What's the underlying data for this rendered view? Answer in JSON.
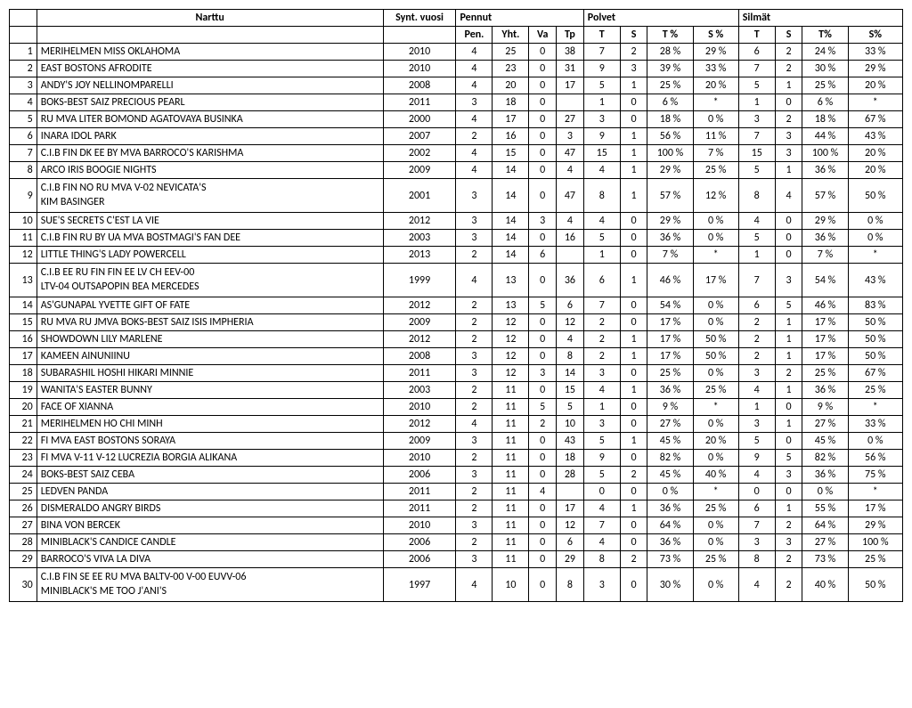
{
  "headers": {
    "row1": {
      "narttu": "Narttu",
      "synt": "Synt. vuosi",
      "pennut": "Pennut",
      "polvet": "Polvet",
      "silmat": "Silmät"
    },
    "row2": {
      "pen": "Pen.",
      "yht": "Yht.",
      "va": "Va",
      "tp": "Tp",
      "t1": "T",
      "s1": "S",
      "tp1": "T %",
      "sp1": "S %",
      "t2": "T",
      "s2": "S",
      "tp2": "T%",
      "sp2": "S%"
    }
  },
  "col_widths": {
    "num": 30,
    "name": 380,
    "synt": 80,
    "pen": 40,
    "yht": 40,
    "va": 30,
    "tp": 30,
    "t1": 40,
    "s1": 30,
    "tp1": 50,
    "sp1": 50,
    "t2": 40,
    "s2": 30,
    "tp2": 50,
    "sp2": 60
  },
  "rows": [
    {
      "n": "1",
      "name": "MERIHELMEN MISS OKLAHOMA",
      "synt": "2010",
      "pen": "4",
      "yht": "25",
      "va": "0",
      "tp": "38",
      "t1": "7",
      "s1": "2",
      "tp1": "28 %",
      "sp1": "29 %",
      "t2": "6",
      "s2": "2",
      "tp2": "24 %",
      "sp2": "33 %"
    },
    {
      "n": "2",
      "name": "EAST BOSTONS AFRODITE",
      "synt": "2010",
      "pen": "4",
      "yht": "23",
      "va": "0",
      "tp": "31",
      "t1": "9",
      "s1": "3",
      "tp1": "39 %",
      "sp1": "33 %",
      "t2": "7",
      "s2": "2",
      "tp2": "30 %",
      "sp2": "29 %"
    },
    {
      "n": "3",
      "name": "ANDY'S JOY NELLINOMPARELLI",
      "synt": "2008",
      "pen": "4",
      "yht": "20",
      "va": "0",
      "tp": "17",
      "t1": "5",
      "s1": "1",
      "tp1": "25 %",
      "sp1": "20 %",
      "t2": "5",
      "s2": "1",
      "tp2": "25 %",
      "sp2": "20 %"
    },
    {
      "n": "4",
      "name": "BOKS-BEST SAIZ PRECIOUS PEARL",
      "synt": "2011",
      "pen": "3",
      "yht": "18",
      "va": "0",
      "tp": "",
      "t1": "1",
      "s1": "0",
      "tp1": "6 %",
      "sp1": "*",
      "t2": "1",
      "s2": "0",
      "tp2": "6 %",
      "sp2": "*"
    },
    {
      "n": "5",
      "name": "RU MVA LITER BOMOND AGATOVAYA BUSINKA",
      "synt": "2000",
      "pen": "4",
      "yht": "17",
      "va": "0",
      "tp": "27",
      "t1": "3",
      "s1": "0",
      "tp1": "18 %",
      "sp1": "0 %",
      "t2": "3",
      "s2": "2",
      "tp2": "18 %",
      "sp2": "67 %"
    },
    {
      "n": "6",
      "name": "INARA IDOL PARK",
      "synt": "2007",
      "pen": "2",
      "yht": "16",
      "va": "0",
      "tp": "3",
      "t1": "9",
      "s1": "1",
      "tp1": "56 %",
      "sp1": "11 %",
      "t2": "7",
      "s2": "3",
      "tp2": "44 %",
      "sp2": "43 %"
    },
    {
      "n": "7",
      "name": "C.I.B FIN DK EE BY MVA BARROCO'S KARISHMA",
      "synt": "2002",
      "pen": "4",
      "yht": "15",
      "va": "0",
      "tp": "47",
      "t1": "15",
      "s1": "1",
      "tp1": "100 %",
      "sp1": "7 %",
      "t2": "15",
      "s2": "3",
      "tp2": "100 %",
      "sp2": "20 %"
    },
    {
      "n": "8",
      "name": "ARCO IRIS BOOGIE NIGHTS",
      "synt": "2009",
      "pen": "4",
      "yht": "14",
      "va": "0",
      "tp": "4",
      "t1": "4",
      "s1": "1",
      "tp1": "29 %",
      "sp1": "25 %",
      "t2": "5",
      "s2": "1",
      "tp2": "36 %",
      "sp2": "20 %"
    },
    {
      "n": "9",
      "name": "C.I.B FIN NO RU MVA V-02 NEVICATA'S\nKIM BASINGER",
      "synt": "2001",
      "pen": "3",
      "yht": "14",
      "va": "0",
      "tp": "47",
      "t1": "8",
      "s1": "1",
      "tp1": "57 %",
      "sp1": "12 %",
      "t2": "8",
      "s2": "4",
      "tp2": "57 %",
      "sp2": "50 %",
      "tall": true
    },
    {
      "n": "10",
      "name": "SUE'S SECRETS C'EST LA VIE",
      "synt": "2012",
      "pen": "3",
      "yht": "14",
      "va": "3",
      "tp": "4",
      "t1": "4",
      "s1": "0",
      "tp1": "29 %",
      "sp1": "0 %",
      "t2": "4",
      "s2": "0",
      "tp2": "29 %",
      "sp2": "0 %"
    },
    {
      "n": "11",
      "name": "C.I.B FIN RU BY UA MVA BOSTMAGI'S FAN DEE",
      "synt": "2003",
      "pen": "3",
      "yht": "14",
      "va": "0",
      "tp": "16",
      "t1": "5",
      "s1": "0",
      "tp1": "36 %",
      "sp1": "0 %",
      "t2": "5",
      "s2": "0",
      "tp2": "36 %",
      "sp2": "0 %"
    },
    {
      "n": "12",
      "name": "LITTLE THING'S LADY POWERCELL",
      "synt": "2013",
      "pen": "2",
      "yht": "14",
      "va": "6",
      "tp": "",
      "t1": "1",
      "s1": "0",
      "tp1": "7 %",
      "sp1": "*",
      "t2": "1",
      "s2": "0",
      "tp2": "7 %",
      "sp2": "*"
    },
    {
      "n": "13",
      "name": "C.I.B EE RU FIN FIN EE LV CH EEV-00\nLTV-04 OUTSAPOPIN BEA MERCEDES",
      "synt": "1999",
      "pen": "4",
      "yht": "13",
      "va": "0",
      "tp": "36",
      "t1": "6",
      "s1": "1",
      "tp1": "46 %",
      "sp1": "17 %",
      "t2": "7",
      "s2": "3",
      "tp2": "54 %",
      "sp2": "43 %",
      "tall": true
    },
    {
      "n": "14",
      "name": "AS'GUNAPAL YVETTE GIFT OF FATE",
      "synt": "2012",
      "pen": "2",
      "yht": "13",
      "va": "5",
      "tp": "6",
      "t1": "7",
      "s1": "0",
      "tp1": "54 %",
      "sp1": "0 %",
      "t2": "6",
      "s2": "5",
      "tp2": "46 %",
      "sp2": "83 %"
    },
    {
      "n": "15",
      "name": "RU MVA RU JMVA BOKS-BEST SAIZ ISIS IMPHERIA",
      "synt": "2009",
      "pen": "2",
      "yht": "12",
      "va": "0",
      "tp": "12",
      "t1": "2",
      "s1": "0",
      "tp1": "17 %",
      "sp1": "0 %",
      "t2": "2",
      "s2": "1",
      "tp2": "17 %",
      "sp2": "50 %"
    },
    {
      "n": "16",
      "name": "SHOWDOWN LILY MARLENE",
      "synt": "2012",
      "pen": "2",
      "yht": "12",
      "va": "0",
      "tp": "4",
      "t1": "2",
      "s1": "1",
      "tp1": "17 %",
      "sp1": "50 %",
      "t2": "2",
      "s2": "1",
      "tp2": "17 %",
      "sp2": "50 %"
    },
    {
      "n": "17",
      "name": "KAMEEN AINUNIINU",
      "synt": "2008",
      "pen": "3",
      "yht": "12",
      "va": "0",
      "tp": "8",
      "t1": "2",
      "s1": "1",
      "tp1": "17 %",
      "sp1": "50 %",
      "t2": "2",
      "s2": "1",
      "tp2": "17 %",
      "sp2": "50 %"
    },
    {
      "n": "18",
      "name": "SUBARASHIL HOSHI HIKARI MINNIE",
      "synt": "2011",
      "pen": "3",
      "yht": "12",
      "va": "3",
      "tp": "14",
      "t1": "3",
      "s1": "0",
      "tp1": "25 %",
      "sp1": "0 %",
      "t2": "3",
      "s2": "2",
      "tp2": "25 %",
      "sp2": "67 %"
    },
    {
      "n": "19",
      "name": "WANITA'S EASTER BUNNY",
      "synt": "2003",
      "pen": "2",
      "yht": "11",
      "va": "0",
      "tp": "15",
      "t1": "4",
      "s1": "1",
      "tp1": "36 %",
      "sp1": "25 %",
      "t2": "4",
      "s2": "1",
      "tp2": "36 %",
      "sp2": "25 %"
    },
    {
      "n": "20",
      "name": "FACE OF XIANNA",
      "synt": "2010",
      "pen": "2",
      "yht": "11",
      "va": "5",
      "tp": "5",
      "t1": "1",
      "s1": "0",
      "tp1": "9 %",
      "sp1": "*",
      "t2": "1",
      "s2": "0",
      "tp2": "9 %",
      "sp2": "*"
    },
    {
      "n": "21",
      "name": "MERIHELMEN HO CHI MINH",
      "synt": "2012",
      "pen": "4",
      "yht": "11",
      "va": "2",
      "tp": "10",
      "t1": "3",
      "s1": "0",
      "tp1": "27 %",
      "sp1": "0 %",
      "t2": "3",
      "s2": "1",
      "tp2": "27 %",
      "sp2": "33 %"
    },
    {
      "n": "22",
      "name": "FI MVA EAST BOSTONS SORAYA",
      "synt": "2009",
      "pen": "3",
      "yht": "11",
      "va": "0",
      "tp": "43",
      "t1": "5",
      "s1": "1",
      "tp1": "45 %",
      "sp1": "20 %",
      "t2": "5",
      "s2": "0",
      "tp2": "45 %",
      "sp2": "0 %"
    },
    {
      "n": "23",
      "name": "FI MVA V-11 V-12 LUCREZIA BORGIA ALIKANA",
      "synt": "2010",
      "pen": "2",
      "yht": "11",
      "va": "0",
      "tp": "18",
      "t1": "9",
      "s1": "0",
      "tp1": "82 %",
      "sp1": "0 %",
      "t2": "9",
      "s2": "5",
      "tp2": "82 %",
      "sp2": "56 %"
    },
    {
      "n": "24",
      "name": "BOKS-BEST SAIZ CEBA",
      "synt": "2006",
      "pen": "3",
      "yht": "11",
      "va": "0",
      "tp": "28",
      "t1": "5",
      "s1": "2",
      "tp1": "45 %",
      "sp1": "40 %",
      "t2": "4",
      "s2": "3",
      "tp2": "36 %",
      "sp2": "75 %"
    },
    {
      "n": "25",
      "name": "LEDVEN PANDA",
      "synt": "2011",
      "pen": "2",
      "yht": "11",
      "va": "4",
      "tp": "",
      "t1": "0",
      "s1": "0",
      "tp1": "0 %",
      "sp1": "*",
      "t2": "0",
      "s2": "0",
      "tp2": "0 %",
      "sp2": "*"
    },
    {
      "n": "26",
      "name": "DISMERALDO ANGRY BIRDS",
      "synt": "2011",
      "pen": "2",
      "yht": "11",
      "va": "0",
      "tp": "17",
      "t1": "4",
      "s1": "1",
      "tp1": "36 %",
      "sp1": "25 %",
      "t2": "6",
      "s2": "1",
      "tp2": "55 %",
      "sp2": "17 %"
    },
    {
      "n": "27",
      "name": "BINA VON BERCEK",
      "synt": "2010",
      "pen": "3",
      "yht": "11",
      "va": "0",
      "tp": "12",
      "t1": "7",
      "s1": "0",
      "tp1": "64 %",
      "sp1": "0 %",
      "t2": "7",
      "s2": "2",
      "tp2": "64 %",
      "sp2": "29 %"
    },
    {
      "n": "28",
      "name": "MINIBLACK'S CANDICE CANDLE",
      "synt": "2006",
      "pen": "2",
      "yht": "11",
      "va": "0",
      "tp": "6",
      "t1": "4",
      "s1": "0",
      "tp1": "36 %",
      "sp1": "0 %",
      "t2": "3",
      "s2": "3",
      "tp2": "27 %",
      "sp2": "100 %"
    },
    {
      "n": "29",
      "name": "BARROCO'S VIVA LA DIVA",
      "synt": "2006",
      "pen": "3",
      "yht": "11",
      "va": "0",
      "tp": "29",
      "t1": "8",
      "s1": "2",
      "tp1": "73 %",
      "sp1": "25 %",
      "t2": "8",
      "s2": "2",
      "tp2": "73 %",
      "sp2": "25 %"
    },
    {
      "n": "30",
      "name": "C.I.B FIN SE EE RU MVA BALTV-00 V-00 EUVV-06\nMINIBLACK'S ME TOO J'ANI'S",
      "synt": "1997",
      "pen": "4",
      "yht": "10",
      "va": "0",
      "tp": "8",
      "t1": "3",
      "s1": "0",
      "tp1": "30 %",
      "sp1": "0 %",
      "t2": "4",
      "s2": "2",
      "tp2": "40 %",
      "sp2": "50 %",
      "tall": true
    }
  ]
}
